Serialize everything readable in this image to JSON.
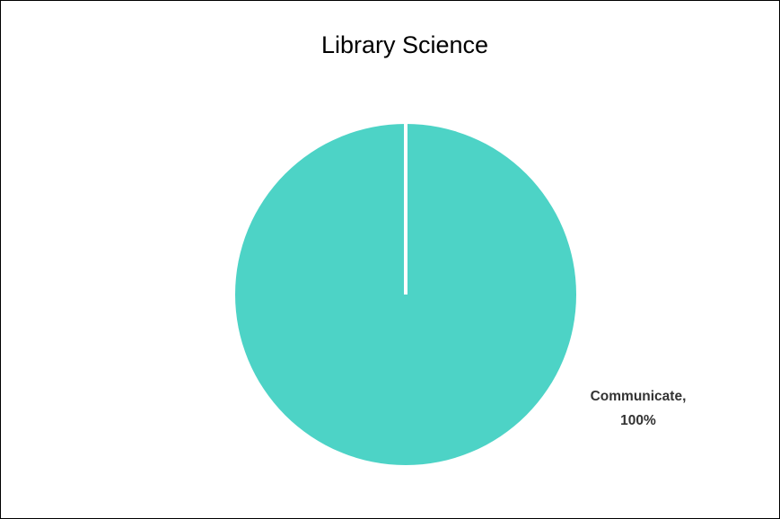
{
  "chart_data": {
    "type": "pie",
    "title": "Library Science",
    "categories": [
      "Communicate"
    ],
    "values": [
      100
    ],
    "slice_colors": [
      "#4dd3c6"
    ],
    "data_labels": [
      {
        "category": "Communicate,",
        "value": "100%"
      }
    ],
    "legend": "none"
  }
}
